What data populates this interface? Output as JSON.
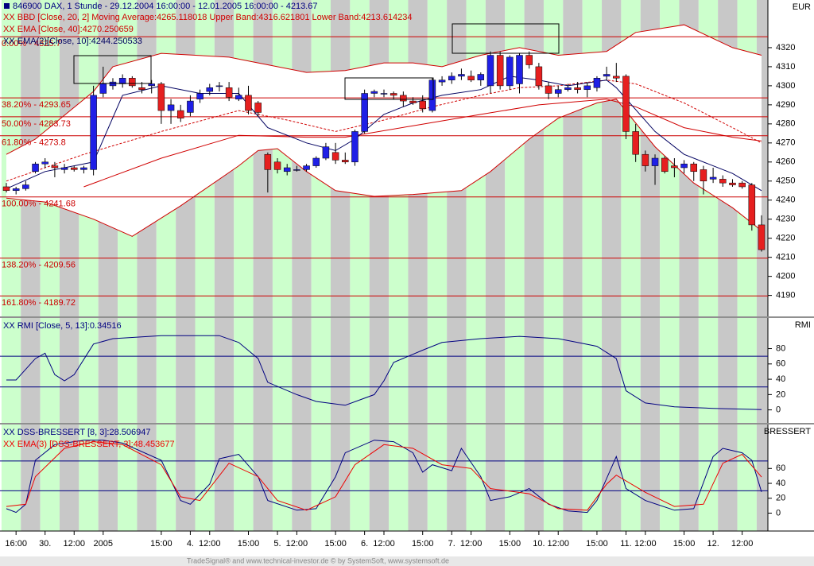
{
  "footer": "TradeSignal® and www.technical-investor.de © by SystemSoft, www.systemsoft.de",
  "chart_data": [
    {
      "type": "candlestick",
      "title": "846900  DAX, 1 Stunde - 29.12.2004 16:00:00 - 12.01.2005 16:00:00 - 4213.67",
      "y_label": "EUR",
      "categories": [
        null,
        "16:00",
        null,
        null,
        "30.",
        null,
        null,
        "12:00",
        null,
        null,
        "2005",
        null,
        null,
        null,
        null,
        null,
        "15:00",
        null,
        null,
        "4.",
        null,
        "12:00",
        null,
        null,
        null,
        "15:00",
        null,
        null,
        "5.",
        null,
        "12:00",
        null,
        null,
        null,
        "15:00",
        null,
        null,
        "6.",
        null,
        "12:00",
        null,
        null,
        null,
        "15:00",
        null,
        null,
        "7.",
        null,
        "12:00",
        null,
        null,
        null,
        "15:00",
        null,
        null,
        "10.",
        null,
        "12:00",
        null,
        null,
        null,
        "15:00",
        null,
        null,
        "11.",
        null,
        "12:00",
        null,
        null,
        null,
        "15:00",
        null,
        null,
        "12.",
        null,
        null,
        "12:00",
        null,
        null
      ],
      "open": [
        4247,
        4245,
        4246,
        4255,
        4259,
        4258,
        4256,
        4257,
        4256,
        4256,
        4296,
        4300,
        4301,
        4304,
        4299,
        4300,
        4301,
        4287,
        4287,
        4286,
        4293,
        4297,
        4300,
        4299,
        4293,
        4295,
        4291,
        4264,
        4260,
        4255,
        4256,
        4256,
        4258,
        4262,
        4265,
        4261,
        4260,
        4276,
        4296,
        4296,
        4296,
        4295,
        4292,
        4292,
        4287,
        4302,
        4303,
        4305,
        4305,
        4303,
        4300,
        4316,
        4300,
        4301,
        4316,
        4310,
        4300,
        4296,
        4298,
        4299,
        4298,
        4299,
        4305,
        4305,
        4305,
        4276,
        4264,
        4258,
        4262,
        4258,
        4257,
        4259,
        4256,
        4251,
        4251,
        4249,
        4249,
        4248,
        4227
      ],
      "high": [
        4249,
        4247,
        4250,
        4260,
        4262,
        4260,
        4259,
        4258,
        4258,
        4300,
        4310,
        4304,
        4306,
        4305,
        4302,
        4303,
        4302,
        4293,
        4290,
        4295,
        4298,
        4301,
        4302,
        4302,
        4299,
        4300,
        4292,
        4265,
        4262,
        4259,
        4258,
        4259,
        4263,
        4270,
        4270,
        4265,
        4277,
        4298,
        4298,
        4298,
        4297,
        4297,
        4294,
        4295,
        4304,
        4305,
        4307,
        4309,
        4308,
        4307,
        4318,
        4318,
        4316,
        4317,
        4318,
        4312,
        4302,
        4300,
        4301,
        4302,
        4302,
        4305,
        4310,
        4312,
        4306,
        4280,
        4266,
        4264,
        4263,
        4262,
        4261,
        4260,
        4258,
        4257,
        4253,
        4251,
        4250,
        4249,
        4232
      ],
      "low": [
        4244,
        4243,
        4245,
        4254,
        4257,
        4252,
        4254,
        4255,
        4254,
        4253,
        4294,
        4298,
        4299,
        4299,
        4296,
        4296,
        4280,
        4280,
        4281,
        4284,
        4291,
        4295,
        4297,
        4292,
        4292,
        4285,
        4284,
        4244,
        4254,
        4253,
        4255,
        4255,
        4257,
        4261,
        4259,
        4259,
        4258,
        4275,
        4294,
        4294,
        4293,
        4289,
        4290,
        4286,
        4286,
        4300,
        4301,
        4303,
        4302,
        4300,
        4296,
        4298,
        4298,
        4296,
        4309,
        4298,
        4293,
        4294,
        4297,
        4296,
        4294,
        4297,
        4303,
        4302,
        4272,
        4260,
        4255,
        4248,
        4254,
        4252,
        4254,
        4250,
        4243,
        4249,
        4247,
        4247,
        4246,
        4224,
        4213
      ],
      "close": [
        4245,
        4246,
        4248,
        4259,
        4260,
        4257,
        4257,
        4256,
        4257,
        4295,
        4301,
        4302,
        4304,
        4300,
        4298,
        4301,
        4287,
        4290,
        4283,
        4292,
        4296,
        4299,
        4300,
        4294,
        4295,
        4287,
        4286,
        4256,
        4256,
        4257,
        4256,
        4258,
        4262,
        4268,
        4261,
        4260,
        4276,
        4296,
        4297,
        4296,
        4295,
        4292,
        4291,
        4288,
        4303,
        4303,
        4305,
        4306,
        4303,
        4306,
        4316,
        4300,
        4315,
        4316,
        4311,
        4300,
        4296,
        4298,
        4299,
        4298,
        4300,
        4304,
        4306,
        4304,
        4276,
        4264,
        4258,
        4262,
        4255,
        4257,
        4259,
        4255,
        4250,
        4252,
        4249,
        4248,
        4247,
        4227,
        4214
      ],
      "up_color": "#1f1fe6",
      "down_color": "#e61f1f",
      "ylim": [
        4179,
        4345
      ],
      "yticks": [
        4190,
        4200,
        4210,
        4220,
        4230,
        4240,
        4250,
        4260,
        4270,
        4280,
        4290,
        4300,
        4310,
        4320
      ],
      "bands": {
        "name": "XX BBD [Close, 20, 2] Moving Average:4265.118018 Upper Band:4316.621801 Lower Band:4213.614234",
        "color": "#d00000",
        "upper": {
          "x": [
            0,
            3,
            9,
            11,
            16,
            23,
            26,
            31,
            35,
            39,
            42,
            45,
            49,
            53,
            57,
            62,
            65,
            70,
            75,
            78
          ],
          "values": [
            4264,
            4272,
            4297,
            4310,
            4317,
            4315,
            4312,
            4307,
            4308,
            4312,
            4312,
            4310,
            4316,
            4320,
            4316,
            4318,
            4328,
            4332,
            4320,
            4316
          ]
        },
        "middle": {
          "x": [
            0,
            8,
            16,
            24,
            29,
            34,
            39,
            44,
            49,
            53,
            57,
            62,
            65,
            70,
            75,
            78
          ],
          "values": [
            4250,
            4264,
            4276,
            4287,
            4282,
            4276,
            4282,
            4289,
            4295,
            4299,
            4300,
            4303,
            4301,
            4291,
            4278,
            4270
          ]
        },
        "lower": {
          "x": [
            0,
            4,
            9,
            13,
            18,
            24,
            26,
            28,
            31,
            34,
            38,
            42,
            47,
            50,
            54,
            57,
            61,
            63,
            67,
            71,
            75,
            78
          ],
          "values": [
            4241,
            4239,
            4230,
            4221,
            4237,
            4258,
            4266,
            4267,
            4255,
            4245,
            4242,
            4243,
            4245,
            4255,
            4272,
            4283,
            4291,
            4293,
            4268,
            4249,
            4236,
            4224
          ]
        }
      },
      "series": [
        {
          "name": "XX EMA [Close, 40]:4270.250659",
          "color": "#d00000",
          "x": [
            8,
            16,
            24,
            31,
            35,
            42,
            49,
            55,
            62,
            65,
            70,
            75,
            78
          ],
          "values": [
            4247,
            4262,
            4274,
            4273,
            4273,
            4279,
            4285,
            4290,
            4293,
            4289,
            4278,
            4273,
            4271
          ]
        },
        {
          "name": "XX EMA(2)[Close, 10]:4244.250533",
          "color": "#000060",
          "x": [
            0,
            4,
            9,
            12,
            16,
            20,
            24,
            27,
            31,
            34,
            36,
            39,
            42,
            45,
            49,
            52,
            55,
            58,
            62,
            63,
            67,
            70,
            75,
            78
          ],
          "values": [
            4246,
            4255,
            4260,
            4295,
            4300,
            4296,
            4296,
            4278,
            4270,
            4266,
            4272,
            4285,
            4291,
            4295,
            4298,
            4305,
            4303,
            4300,
            4303,
            4299,
            4276,
            4264,
            4254,
            4245
          ]
        }
      ],
      "fib_color": "#cc0000",
      "fib_levels": [
        {
          "value": 4325.7,
          "label": "0.00% - 4325.7"
        },
        {
          "value": 4293.65,
          "label": "38.20% - 4293.65"
        },
        {
          "value": 4283.73,
          "label": "50.00% - 4283.73"
        },
        {
          "value": 4273.8,
          "label": "61.80% - 4273.8"
        },
        {
          "value": 4241.68,
          "label": "100.00% - 4241.68"
        },
        {
          "value": 4209.56,
          "label": "138.20% - 4209.56"
        },
        {
          "value": 4189.72,
          "label": "161.80% - 4189.72"
        }
      ]
    },
    {
      "type": "line",
      "y_label": "RMI",
      "ylim": [
        -17,
        120
      ],
      "yticks": [
        0,
        20,
        40,
        60,
        80
      ],
      "hlines": [
        70,
        30
      ],
      "hline_color": "#000080",
      "series": [
        {
          "name": "XX RMI [Close, 5, 13]:0.34516",
          "color": "#000080",
          "x": [
            0,
            1,
            3,
            4,
            5,
            6,
            7,
            9,
            11,
            16,
            22,
            24,
            26,
            27,
            30,
            32,
            35,
            38,
            39,
            40,
            43,
            45,
            49,
            53,
            57,
            59,
            61,
            63,
            64,
            66,
            69,
            73,
            78
          ],
          "values": [
            39,
            39,
            67,
            74,
            46,
            38,
            46,
            86,
            93,
            97,
            97,
            88,
            67,
            36,
            20,
            11,
            6,
            20,
            38,
            62,
            78,
            88,
            93,
            96,
            93,
            88,
            83,
            67,
            25,
            9,
            4,
            2,
            0.35
          ]
        }
      ]
    },
    {
      "type": "line",
      "y_label": "BRESSERT",
      "ylim": [
        -24,
        119
      ],
      "yticks": [
        0,
        20,
        40,
        60
      ],
      "hlines": [
        70,
        30
      ],
      "hline_color": "#000080",
      "series": [
        {
          "name": "XX DSS-BRESSERT [8, 3]:28.506947",
          "color": "#000080",
          "x": [
            0,
            1,
            2,
            3,
            5,
            8,
            10,
            12,
            16,
            18,
            19,
            21,
            22,
            24,
            26,
            27,
            30,
            32,
            34,
            35,
            38,
            40,
            42,
            43,
            44,
            46,
            47,
            49,
            50,
            52,
            54,
            56,
            58,
            60,
            61,
            63,
            64,
            66,
            69,
            71,
            73,
            74,
            76,
            77,
            78
          ],
          "values": [
            6,
            1,
            12,
            71,
            92,
            98,
            98,
            94,
            71,
            17,
            12,
            39,
            73,
            79,
            49,
            17,
            4,
            6,
            49,
            81,
            98,
            96,
            81,
            55,
            65,
            57,
            87,
            49,
            17,
            22,
            33,
            12,
            3,
            1,
            17,
            76,
            33,
            17,
            4,
            6,
            76,
            87,
            81,
            71,
            28.5
          ]
        },
        {
          "name": "XX EMA(3) [DSS-BRESSERT, 3]:48.453677",
          "color": "#ee0000",
          "x": [
            0,
            2,
            3,
            6,
            9,
            12,
            16,
            18,
            20,
            23,
            26,
            28,
            31,
            34,
            36,
            39,
            42,
            45,
            48,
            50,
            54,
            57,
            60,
            62,
            63,
            66,
            69,
            72,
            74,
            76,
            78
          ],
          "values": [
            9,
            12,
            49,
            87,
            96,
            92,
            65,
            22,
            17,
            67,
            49,
            17,
            4,
            22,
            65,
            92,
            87,
            65,
            60,
            33,
            26,
            6,
            4,
            39,
            51,
            28,
            9,
            12,
            67,
            79,
            48.5
          ]
        }
      ]
    }
  ]
}
